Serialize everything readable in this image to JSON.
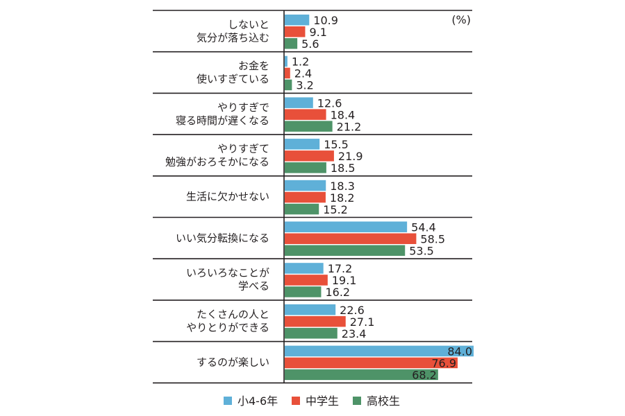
{
  "chart_data": {
    "type": "bar",
    "orientation": "horizontal",
    "unit_label": "(%)",
    "categories": [
      [
        "しないと",
        "気分が落ち込む"
      ],
      [
        "お金を",
        "使いすぎている"
      ],
      [
        "やりすぎで",
        "寝る時間が遅くなる"
      ],
      [
        "やりすぎて",
        "勉強がおろそかになる"
      ],
      [
        "生活に欠かせない"
      ],
      [
        "いい気分転換になる"
      ],
      [
        "いろいろなことが",
        "学べる"
      ],
      [
        "たくさんの人と",
        "やりとりができる"
      ],
      [
        "するのが楽しい"
      ]
    ],
    "series": [
      {
        "name": "小4-6年",
        "color": "#5fb0d8",
        "values": [
          10.9,
          1.2,
          12.6,
          15.5,
          18.3,
          54.4,
          17.2,
          22.6,
          84.0
        ]
      },
      {
        "name": "中学生",
        "color": "#e8503a",
        "values": [
          9.1,
          2.4,
          18.4,
          21.9,
          18.2,
          58.5,
          19.1,
          27.1,
          76.9
        ]
      },
      {
        "name": "高校生",
        "color": "#4e9368",
        "values": [
          5.6,
          3.2,
          21.2,
          18.5,
          15.2,
          53.5,
          16.2,
          23.4,
          68.2
        ]
      }
    ],
    "xlim": [
      0,
      84
    ],
    "grid": false,
    "legend_position": "bottom"
  }
}
